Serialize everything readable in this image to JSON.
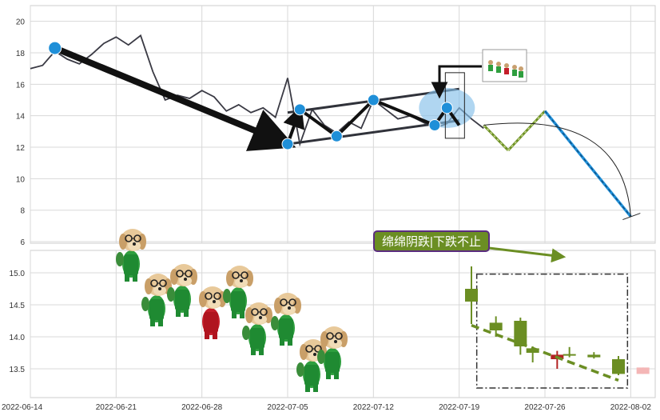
{
  "chart_data": [
    {
      "type": "line",
      "panel": "top",
      "y_ticks": [
        6,
        8,
        10,
        12,
        14,
        16,
        18,
        20
      ],
      "ylim": [
        5.9,
        21
      ],
      "xlim": [
        "2022-06-14",
        "2022-08-04"
      ],
      "grid": true,
      "colors": {
        "price_line": "#3a3a44",
        "trend_line": "#111111",
        "channel_line": "#30323a",
        "pivot_marker": "#1f8fd8",
        "highlight": "#86c0ea",
        "forecast_line": "#6b8e23",
        "forecast_path": "#1f8fd8"
      },
      "price_series": [
        [
          "2022-06-14",
          17.0
        ],
        [
          "2022-06-15",
          17.2
        ],
        [
          "2022-06-16",
          18.1
        ],
        [
          "2022-06-17",
          17.6
        ],
        [
          "2022-06-18",
          17.3
        ],
        [
          "2022-06-19",
          17.9
        ],
        [
          "2022-06-20",
          18.6
        ],
        [
          "2022-06-21",
          19.0
        ],
        [
          "2022-06-22",
          18.5
        ],
        [
          "2022-06-23",
          19.1
        ],
        [
          "2022-06-24",
          16.8
        ],
        [
          "2022-06-25",
          15.0
        ],
        [
          "2022-06-26",
          15.3
        ],
        [
          "2022-06-27",
          15.1
        ],
        [
          "2022-06-28",
          15.6
        ],
        [
          "2022-06-29",
          15.2
        ],
        [
          "2022-06-30",
          14.3
        ],
        [
          "2022-07-01",
          14.7
        ],
        [
          "2022-07-02",
          14.2
        ],
        [
          "2022-07-03",
          14.5
        ],
        [
          "2022-07-04",
          13.9
        ],
        [
          "2022-07-05",
          16.4
        ],
        [
          "2022-07-06",
          12.2
        ],
        [
          "2022-07-07",
          14.4
        ],
        [
          "2022-07-08",
          13.4
        ],
        [
          "2022-07-09",
          12.9
        ],
        [
          "2022-07-10",
          13.6
        ],
        [
          "2022-07-11",
          13.2
        ],
        [
          "2022-07-12",
          15.0
        ],
        [
          "2022-07-13",
          14.4
        ],
        [
          "2022-07-14",
          13.8
        ],
        [
          "2022-07-15",
          14.0
        ],
        [
          "2022-07-16",
          13.6
        ],
        [
          "2022-07-17",
          13.2
        ],
        [
          "2022-07-18",
          13.5
        ],
        [
          "2022-07-19",
          14.5
        ],
        [
          "2022-07-20",
          13.8
        ],
        [
          "2022-07-21",
          13.2
        ]
      ],
      "trend_points": [
        [
          "2022-06-16",
          18.3
        ],
        [
          "2022-07-05",
          12.2
        ],
        [
          "2022-07-06",
          14.4
        ],
        [
          "2022-07-09",
          12.7
        ],
        [
          "2022-07-12",
          15.0
        ],
        [
          "2022-07-17",
          13.4
        ],
        [
          "2022-07-18",
          14.5
        ],
        [
          "2022-07-19",
          13.4
        ]
      ],
      "pivot_markers": [
        [
          "2022-06-16",
          18.3
        ],
        [
          "2022-07-05",
          12.2
        ],
        [
          "2022-07-06",
          14.4
        ],
        [
          "2022-07-09",
          12.7
        ],
        [
          "2022-07-12",
          15.0
        ],
        [
          "2022-07-17",
          13.4
        ],
        [
          "2022-07-18",
          14.5
        ]
      ],
      "channel_upper": [
        [
          "2022-07-05",
          14.2
        ],
        [
          "2022-07-19",
          15.7
        ]
      ],
      "channel_lower": [
        [
          "2022-07-05",
          12.2
        ],
        [
          "2022-07-19",
          13.7
        ]
      ],
      "forecast_zigzag": [
        [
          "2022-07-21",
          13.4
        ],
        [
          "2022-07-23",
          11.8
        ],
        [
          "2022-07-26",
          14.3
        ],
        [
          "2022-08-02",
          7.6
        ]
      ],
      "arc_from": [
        "2022-07-21",
        13.4
      ],
      "arc_to": [
        "2022-08-02",
        7.6
      ]
    },
    {
      "type": "candlestick",
      "panel": "bottom",
      "y_ticks": [
        13.5,
        14.0,
        14.5,
        15.0
      ],
      "ylim": [
        13.05,
        15.35
      ],
      "x_tick_labels": [
        "2022-06-14",
        "2022-06-21",
        "2022-06-28",
        "2022-07-05",
        "2022-07-12",
        "2022-07-19",
        "2022-07-26",
        "2022-08-02"
      ],
      "grid": true,
      "candles": [
        {
          "date": "2022-07-20",
          "open": 14.55,
          "high": 15.1,
          "low": 14.2,
          "close": 14.75,
          "color": "#6b8e23"
        },
        {
          "date": "2022-07-22",
          "open": 14.1,
          "high": 14.32,
          "low": 14.0,
          "close": 14.22,
          "color": "#6b8e23"
        },
        {
          "date": "2022-07-24",
          "open": 13.85,
          "high": 14.3,
          "low": 13.72,
          "close": 14.25,
          "color": "#6b8e23"
        },
        {
          "date": "2022-07-25",
          "open": 13.75,
          "high": 13.85,
          "low": 13.6,
          "close": 13.82,
          "color": "#6b8e23"
        },
        {
          "date": "2022-07-27",
          "open": 13.72,
          "high": 13.78,
          "low": 13.5,
          "close": 13.65,
          "color": "#b22222"
        },
        {
          "date": "2022-07-28",
          "open": 13.71,
          "high": 13.84,
          "low": 13.68,
          "close": 13.73,
          "color": "#6b8e23"
        },
        {
          "date": "2022-07-30",
          "open": 13.68,
          "high": 13.76,
          "low": 13.66,
          "close": 13.72,
          "color": "#6b8e23"
        },
        {
          "date": "2022-08-01",
          "open": 13.42,
          "high": 13.7,
          "low": 13.4,
          "close": 13.65,
          "color": "#6b8e23"
        },
        {
          "date": "2022-08-03",
          "open": 13.42,
          "high": 13.52,
          "low": 13.42,
          "close": 13.52,
          "color": "#f4b6b6"
        }
      ],
      "dashed_trend": [
        [
          "2022-07-20",
          14.18
        ],
        [
          "2022-08-01",
          13.32
        ]
      ],
      "pattern_box": {
        "x0": "2022-07-19",
        "x1": "2022-08-02",
        "y0": 13.2,
        "y1": 14.98
      },
      "annotation": {
        "text": "绵绵阴跌|下跌不止",
        "bg_color": "#6b8e23",
        "border_color": "#5b2d80",
        "arrow_to": [
          "2022-07-28",
          15.25
        ]
      }
    }
  ]
}
